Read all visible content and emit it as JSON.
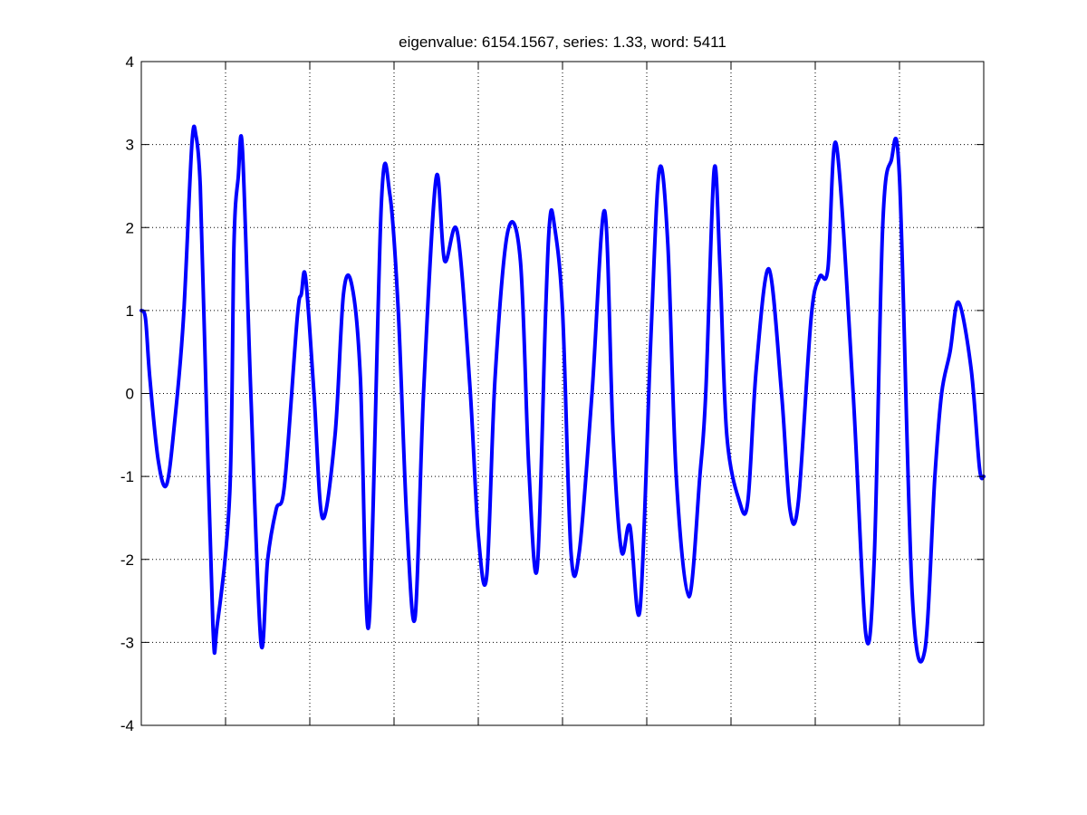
{
  "chart_data": {
    "type": "line",
    "title": "eigenvalue: 6154.1567, series: 1.33, word: 5411",
    "xlabel": "",
    "ylabel": "",
    "xlim": [
      0,
      10
    ],
    "ylim": [
      -4,
      4
    ],
    "y_ticks": [
      "-4",
      "-3",
      "-2",
      "-1",
      "0",
      "1",
      "2",
      "3",
      "4"
    ],
    "x_tick_count": 9,
    "x_tick_labels_shown": false,
    "grid": true,
    "grid_style": "dotted",
    "line_color": "#0000ff",
    "series": [
      {
        "x": [
          0,
          0.05,
          0.1,
          0.2,
          0.3,
          0.4,
          0.5,
          0.6,
          0.65,
          0.7,
          0.75,
          0.85,
          0.9,
          1.05,
          1.1,
          1.15,
          1.2,
          1.3,
          1.42,
          1.5,
          1.6,
          1.7,
          1.85,
          1.9,
          1.95,
          2.05,
          2.15,
          2.3,
          2.4,
          2.5,
          2.6,
          2.7,
          2.85,
          2.95,
          3.05,
          3.15,
          3.25,
          3.35,
          3.5,
          3.6,
          3.75,
          3.9,
          4.0,
          4.1,
          4.2,
          4.35,
          4.5,
          4.6,
          4.7,
          4.8,
          4.85,
          4.9,
          5.0,
          5.1,
          5.2,
          5.35,
          5.5,
          5.6,
          5.7,
          5.8,
          5.92,
          6.05,
          6.15,
          6.25,
          6.35,
          6.5,
          6.63,
          6.7,
          6.8,
          6.87,
          6.95,
          7.1,
          7.2,
          7.3,
          7.45,
          7.6,
          7.7,
          7.8,
          7.95,
          8.05,
          8.15,
          8.25,
          8.45,
          8.6,
          8.7,
          8.8,
          8.9,
          9.0,
          9.15,
          9.3,
          9.42,
          9.5,
          9.6,
          9.7,
          9.85,
          9.95,
          10.0
        ],
        "y": [
          1.0,
          0.9,
          0.2,
          -0.8,
          -1.1,
          -0.3,
          0.9,
          3.0,
          3.1,
          2.5,
          0.7,
          -2.8,
          -2.8,
          -1.2,
          1.8,
          2.6,
          2.95,
          0.0,
          -3.0,
          -2.0,
          -1.4,
          -1.1,
          0.9,
          1.2,
          1.4,
          0.0,
          -1.5,
          -0.5,
          1.2,
          1.3,
          0.2,
          -2.8,
          2.3,
          2.4,
          1.0,
          -1.5,
          -2.7,
          0.0,
          2.6,
          1.6,
          1.95,
          0.1,
          -1.7,
          -2.2,
          0.2,
          1.95,
          1.6,
          -0.9,
          -2.1,
          1.0,
          2.1,
          2.05,
          1.0,
          -1.9,
          -1.9,
          0.0,
          2.2,
          -0.5,
          -1.9,
          -1.6,
          -2.6,
          0.7,
          2.7,
          1.8,
          -1.0,
          -2.45,
          -1.0,
          0.0,
          2.7,
          1.5,
          -0.5,
          -1.3,
          -1.3,
          0.3,
          1.5,
          0.0,
          -1.4,
          -1.3,
          0.9,
          1.4,
          1.5,
          3.0,
          0.0,
          -2.9,
          -2.0,
          2.0,
          2.8,
          2.6,
          -2.4,
          -3.1,
          -1.0,
          0.0,
          0.5,
          1.1,
          0.3,
          -0.9,
          -1.0
        ]
      }
    ]
  }
}
